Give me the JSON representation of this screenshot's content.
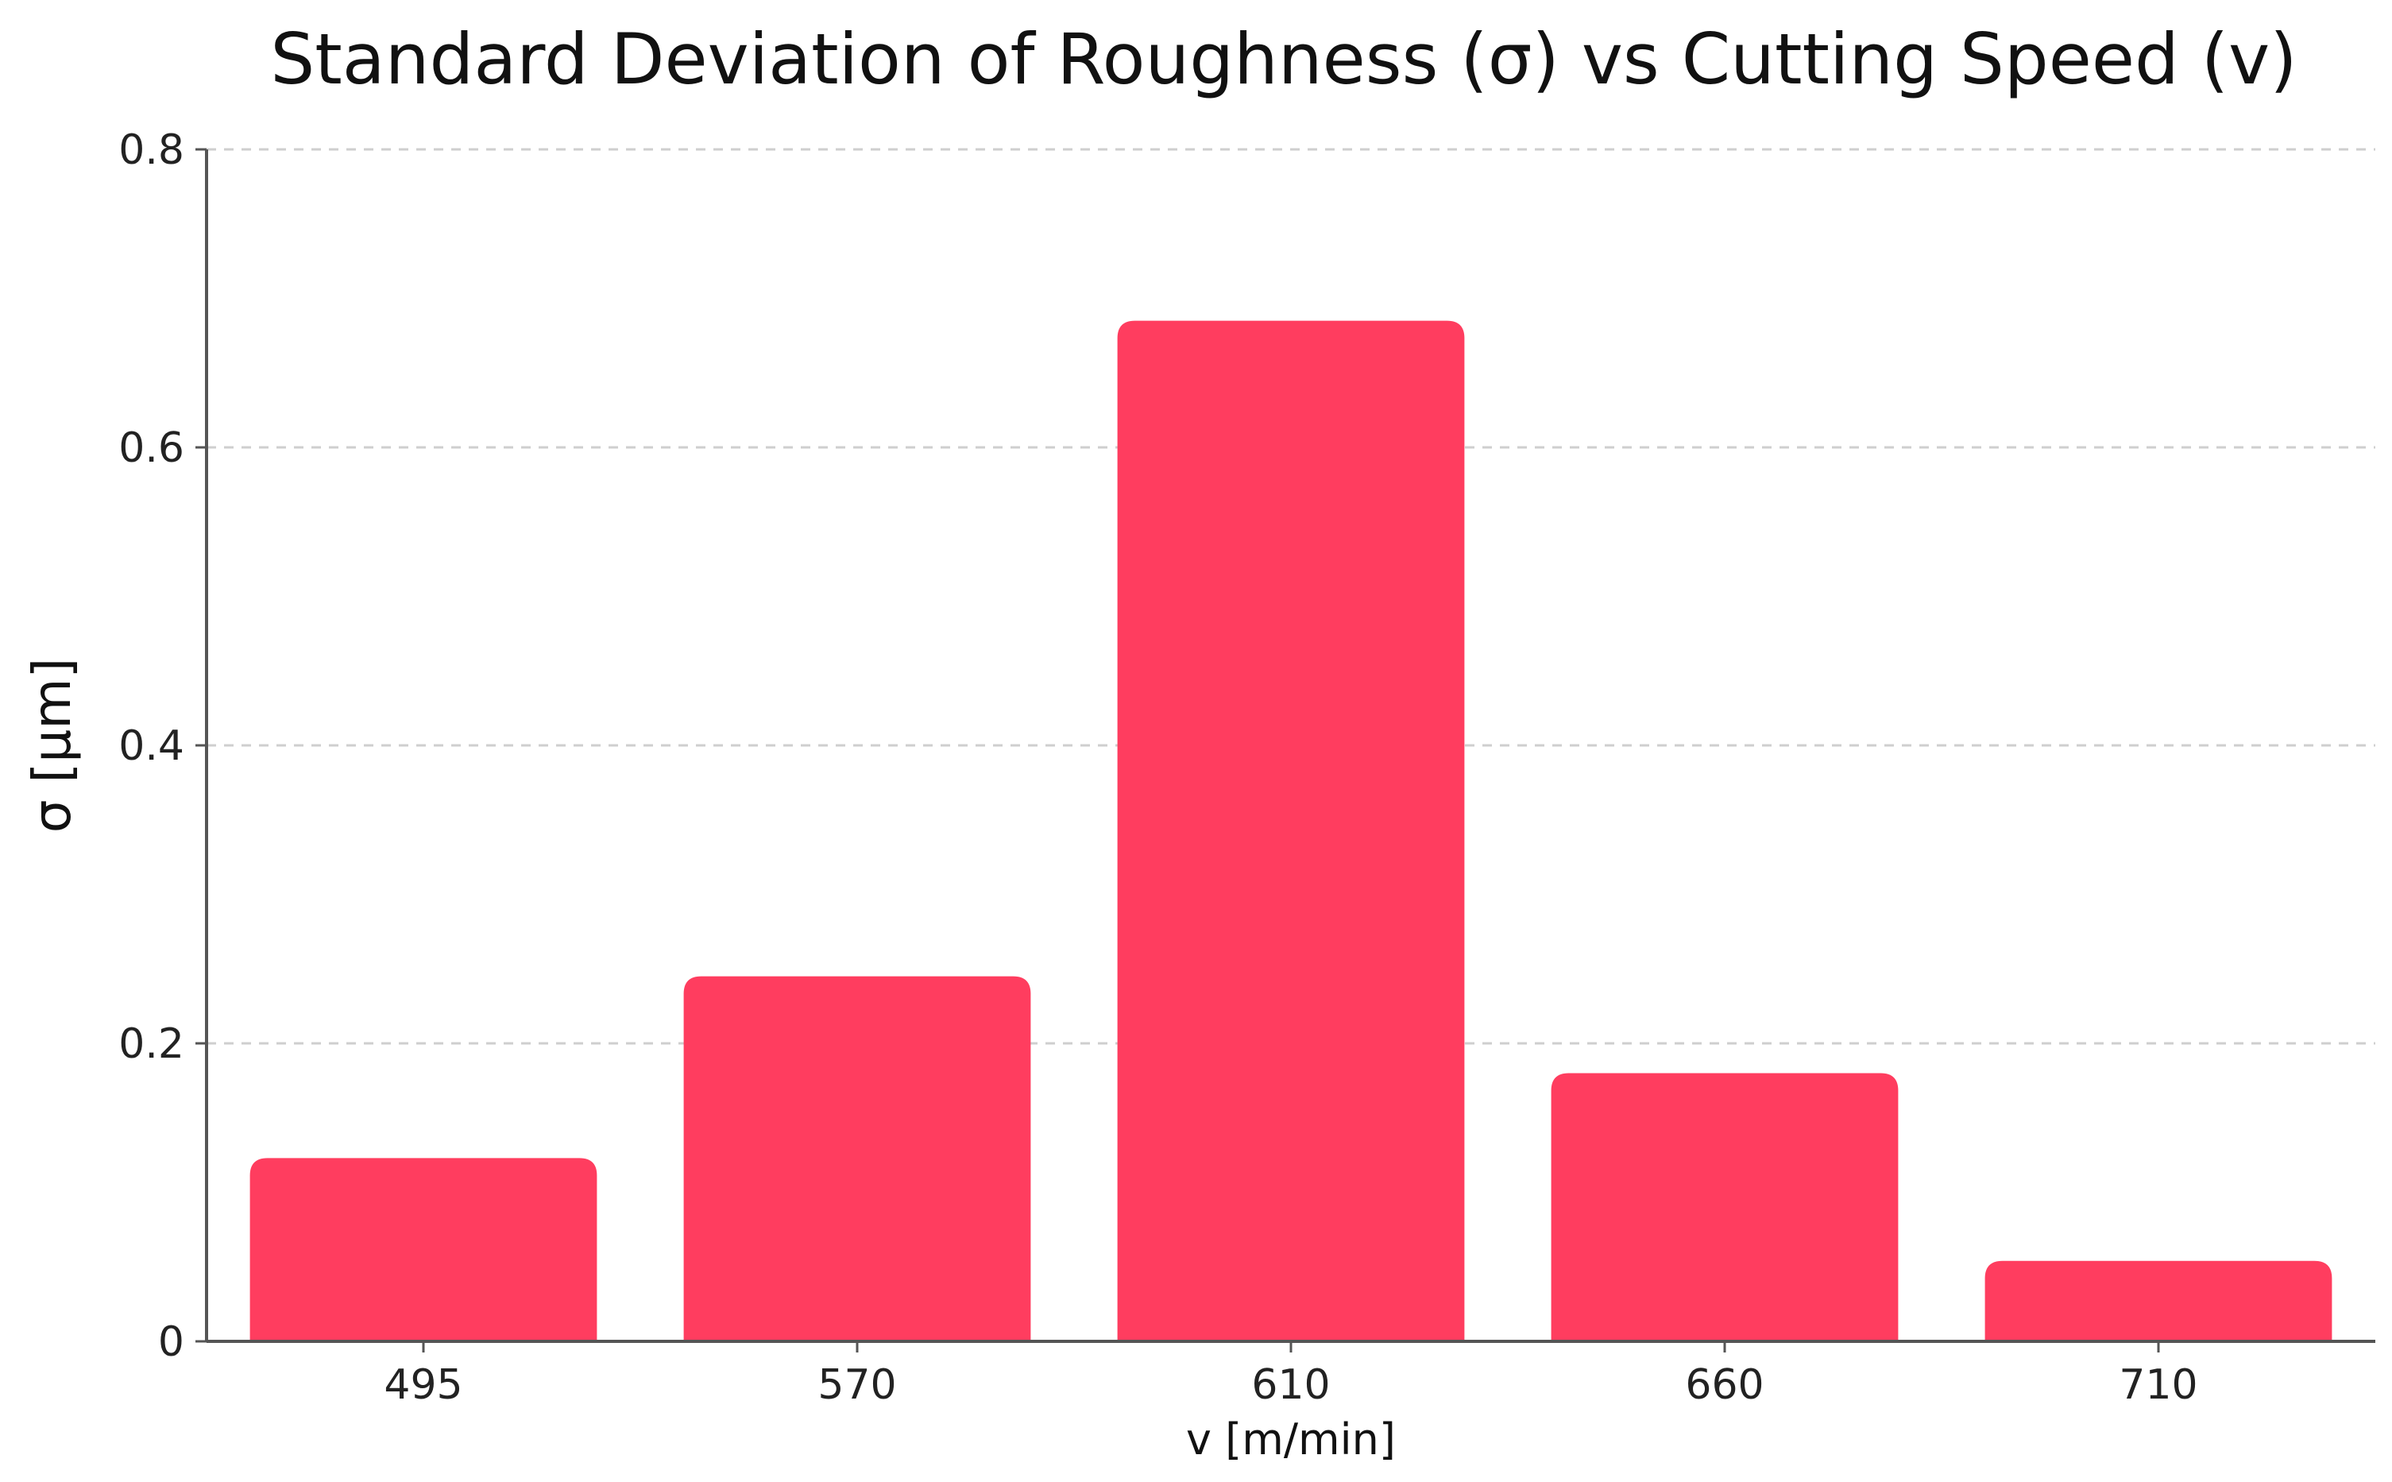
{
  "chart_data": {
    "type": "bar",
    "title": "Standard Deviation of Roughness (σ) vs Cutting Speed (v)",
    "xlabel": "v [m/min]",
    "ylabel": "σ [μm]",
    "categories": [
      "495",
      "570",
      "610",
      "660",
      "710"
    ],
    "values": [
      0.123,
      0.245,
      0.685,
      0.18,
      0.054
    ],
    "ylim": [
      0,
      0.8
    ],
    "yticks": [
      0,
      0.2,
      0.4,
      0.6,
      0.8
    ],
    "ytick_labels": [
      "0",
      "0.2",
      "0.4",
      "0.6",
      "0.8"
    ],
    "grid": true,
    "bar_color": "#FF3D5F"
  }
}
